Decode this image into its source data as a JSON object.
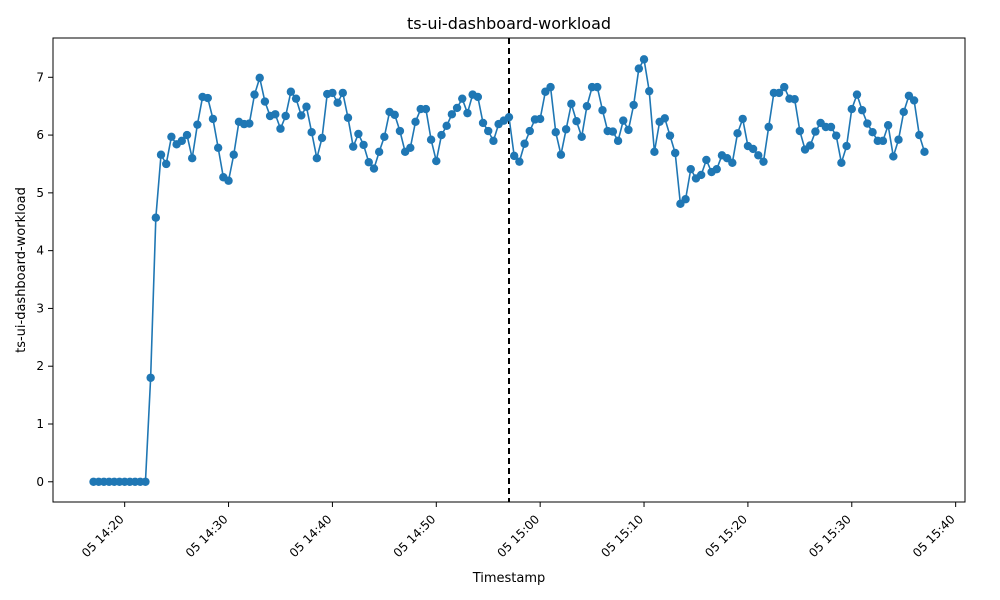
{
  "chart_data": {
    "type": "line",
    "title": "ts-ui-dashboard-workload",
    "xlabel": "Timestamp",
    "ylabel": "ts-ui-dashboard-workload",
    "start_time": "05 14:17",
    "interval_minutes": 0.5,
    "x_range_minutes": [
      -3.9,
      83.9
    ],
    "ylim": [
      -0.35,
      7.68
    ],
    "yticks": [
      0,
      1,
      2,
      3,
      4,
      5,
      6,
      7
    ],
    "xticks": [
      {
        "minute": 3,
        "label": "05 14:20"
      },
      {
        "minute": 13,
        "label": "05 14:30"
      },
      {
        "minute": 23,
        "label": "05 14:40"
      },
      {
        "minute": 33,
        "label": "05 14:50"
      },
      {
        "minute": 43,
        "label": "05 15:00"
      },
      {
        "minute": 53,
        "label": "05 15:10"
      },
      {
        "minute": 63,
        "label": "05 15:20"
      },
      {
        "minute": 73,
        "label": "05 15:30"
      },
      {
        "minute": 83,
        "label": "05 15:40"
      }
    ],
    "vline_minute": 40,
    "series": [
      {
        "name": "ts-ui-dashboard-workload",
        "color": "#1f77b4",
        "values": [
          0,
          0,
          0,
          0,
          0,
          0,
          0,
          0,
          0,
          0,
          0,
          1.8,
          4.57,
          5.66,
          5.5,
          5.97,
          5.84,
          5.9,
          6.0,
          5.6,
          6.18,
          6.66,
          6.64,
          6.28,
          5.78,
          5.27,
          5.21,
          5.66,
          6.23,
          6.19,
          6.2,
          6.7,
          6.99,
          6.58,
          6.33,
          6.36,
          6.11,
          6.33,
          6.75,
          6.63,
          6.34,
          6.49,
          6.05,
          5.6,
          5.95,
          6.71,
          6.73,
          6.56,
          6.73,
          6.3,
          5.8,
          6.02,
          5.83,
          5.53,
          5.42,
          5.71,
          5.97,
          6.4,
          6.35,
          6.07,
          5.71,
          5.78,
          6.23,
          6.45,
          6.45,
          5.92,
          5.55,
          6.0,
          6.16,
          6.36,
          6.47,
          6.63,
          6.38,
          6.7,
          6.66,
          6.21,
          6.07,
          5.9,
          6.19,
          6.25,
          6.31,
          5.64,
          5.54,
          5.85,
          6.07,
          6.27,
          6.28,
          6.75,
          6.83,
          6.05,
          5.66,
          6.1,
          6.54,
          6.24,
          5.97,
          6.5,
          6.83,
          6.83,
          6.43,
          6.07,
          6.06,
          5.9,
          6.25,
          6.09,
          6.52,
          7.15,
          7.31,
          6.76,
          5.71,
          6.23,
          6.29,
          5.99,
          5.69,
          4.81,
          4.89,
          5.41,
          5.25,
          5.31,
          5.57,
          5.36,
          5.41,
          5.65,
          5.6,
          5.52,
          6.03,
          6.28,
          5.81,
          5.76,
          5.65,
          5.54,
          6.14,
          6.73,
          6.73,
          6.83,
          6.63,
          6.62,
          6.07,
          5.75,
          5.82,
          6.06,
          6.21,
          6.14,
          6.14,
          5.99,
          5.52,
          5.81,
          6.45,
          6.7,
          6.43,
          6.2,
          6.05,
          5.9,
          5.9,
          6.17,
          5.63,
          5.92,
          6.4,
          6.68,
          6.6,
          6.0,
          5.71
        ]
      }
    ]
  }
}
